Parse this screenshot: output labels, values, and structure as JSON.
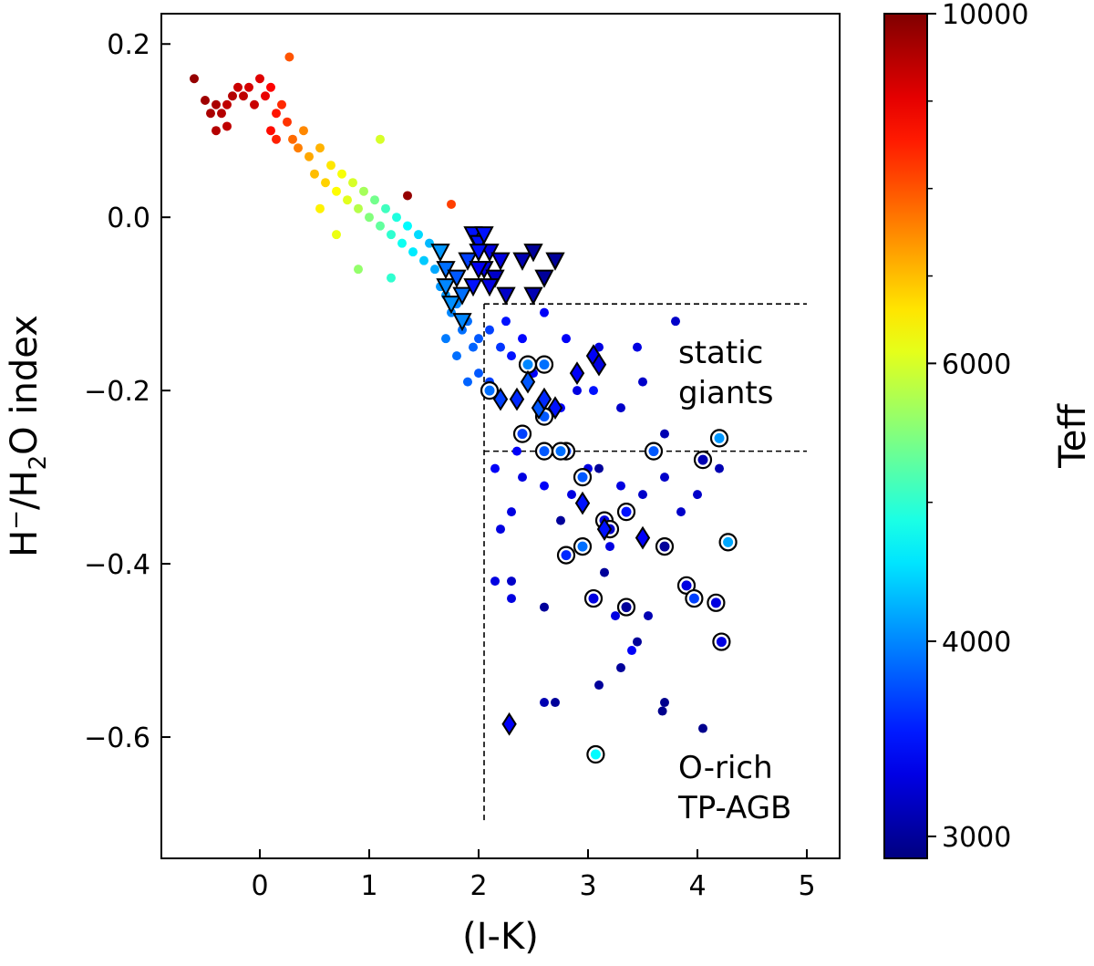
{
  "chart_data": {
    "type": "scatter",
    "title": "",
    "xlabel": "(I-K)",
    "ylabel_parts": {
      "p1": "H",
      "sup": "−",
      "p2": "/H",
      "sub": "2",
      "p3": "O index"
    },
    "xlim": [
      -0.9,
      5.3
    ],
    "ylim": [
      -0.74,
      0.235
    ],
    "x_ticks": [
      0,
      1,
      2,
      3,
      4,
      5
    ],
    "x_tick_labels": [
      "0",
      "1",
      "2",
      "3",
      "4",
      "5"
    ],
    "y_ticks": [
      0.2,
      0.0,
      -0.2,
      -0.4,
      -0.6
    ],
    "y_tick_labels": [
      "0.2",
      "0.0",
      "−0.2",
      "−0.4",
      "−0.6"
    ],
    "grid": false,
    "colorbar": {
      "label": "Teff",
      "cmap": "jet",
      "range": [
        2900,
        10000
      ],
      "ticks": [
        3000,
        4000,
        6000,
        10000
      ],
      "tick_labels": [
        "3000",
        "4000",
        "6000",
        "10000"
      ],
      "minor_ticks": [
        5000,
        7000,
        8000,
        9000
      ]
    },
    "annotations": [
      {
        "lines": [
          "static",
          "giants"
        ],
        "x": 3.8,
        "y": -0.17
      },
      {
        "lines": [
          "O-rich",
          "TP-AGB"
        ],
        "x": 3.8,
        "y": -0.645
      }
    ],
    "boundaries": [
      {
        "x1": 2.05,
        "y1": -0.1,
        "x2": 5.0,
        "y2": -0.1
      },
      {
        "x1": 2.05,
        "y1": -0.27,
        "x2": 5.0,
        "y2": -0.27
      },
      {
        "x1": 2.05,
        "y1": -0.1,
        "x2": 2.05,
        "y2": -0.7
      }
    ],
    "series": [
      {
        "name": "sample stars",
        "marker": "dot",
        "points": [
          [
            -0.6,
            0.16,
            9800
          ],
          [
            -0.5,
            0.135,
            9700
          ],
          [
            -0.45,
            0.12,
            9600
          ],
          [
            -0.4,
            0.13,
            9600
          ],
          [
            -0.35,
            0.12,
            9500
          ],
          [
            -0.3,
            0.13,
            9400
          ],
          [
            -0.25,
            0.14,
            9500
          ],
          [
            -0.2,
            0.15,
            9300
          ],
          [
            -0.15,
            0.14,
            9400
          ],
          [
            -0.1,
            0.15,
            9200
          ],
          [
            -0.05,
            0.13,
            9300
          ],
          [
            0.0,
            0.16,
            9100
          ],
          [
            0.05,
            0.14,
            9000
          ],
          [
            0.1,
            0.15,
            8800
          ],
          [
            0.15,
            0.12,
            8600
          ],
          [
            0.2,
            0.13,
            8400
          ],
          [
            0.25,
            0.11,
            8300
          ],
          [
            0.27,
            0.185,
            8000
          ],
          [
            -0.4,
            0.1,
            9500
          ],
          [
            -0.3,
            0.105,
            9400
          ],
          [
            0.1,
            0.1,
            8700
          ],
          [
            0.15,
            0.09,
            8500
          ],
          [
            0.3,
            0.09,
            7800
          ],
          [
            0.35,
            0.08,
            7600
          ],
          [
            0.4,
            0.1,
            7500
          ],
          [
            0.45,
            0.07,
            7200
          ],
          [
            0.5,
            0.05,
            7000
          ],
          [
            0.55,
            0.08,
            7100
          ],
          [
            0.6,
            0.04,
            6800
          ],
          [
            0.65,
            0.06,
            6600
          ],
          [
            0.7,
            0.03,
            6400
          ],
          [
            0.75,
            0.05,
            6300
          ],
          [
            0.8,
            0.02,
            6100
          ],
          [
            0.85,
            0.04,
            6000
          ],
          [
            0.9,
            0.01,
            5800
          ],
          [
            0.95,
            0.03,
            5700
          ],
          [
            1.0,
            0.0,
            5500
          ],
          [
            1.05,
            0.02,
            5400
          ],
          [
            1.1,
            -0.01,
            5300
          ],
          [
            1.15,
            0.01,
            5100
          ],
          [
            1.2,
            -0.02,
            5000
          ],
          [
            1.25,
            0.0,
            4900
          ],
          [
            1.3,
            -0.03,
            4800
          ],
          [
            1.35,
            -0.01,
            4700
          ],
          [
            1.4,
            -0.04,
            4600
          ],
          [
            1.45,
            -0.02,
            4500
          ],
          [
            1.5,
            -0.05,
            4400
          ],
          [
            1.55,
            -0.03,
            4300
          ],
          [
            1.6,
            -0.06,
            4200
          ],
          [
            1.65,
            -0.08,
            4100
          ],
          [
            1.1,
            0.09,
            6000
          ],
          [
            0.7,
            -0.02,
            6200
          ],
          [
            0.55,
            0.01,
            6500
          ],
          [
            1.35,
            0.025,
            9800
          ],
          [
            1.75,
            0.015,
            8200
          ],
          [
            0.9,
            -0.06,
            5600
          ],
          [
            1.2,
            -0.07,
            5000
          ],
          [
            1.7,
            -0.09,
            4100
          ],
          [
            1.75,
            -0.11,
            4000
          ],
          [
            1.8,
            -0.1,
            4000
          ],
          [
            1.85,
            -0.13,
            3900
          ],
          [
            1.9,
            -0.12,
            3900
          ],
          [
            1.95,
            -0.15,
            3850
          ],
          [
            2.0,
            -0.14,
            3800
          ],
          [
            1.7,
            -0.14,
            3950
          ],
          [
            1.8,
            -0.16,
            3900
          ],
          [
            2.0,
            -0.18,
            3800
          ],
          [
            2.1,
            -0.13,
            3700
          ],
          [
            2.2,
            -0.15,
            3650
          ],
          [
            2.25,
            -0.12,
            3500
          ],
          [
            2.3,
            -0.16,
            3500
          ],
          [
            2.4,
            -0.14,
            3450
          ],
          [
            2.5,
            -0.18,
            3400
          ],
          [
            2.6,
            -0.11,
            3400
          ],
          [
            1.9,
            -0.19,
            3850
          ],
          [
            2.1,
            -0.19,
            3700
          ],
          [
            2.8,
            -0.14,
            3400
          ],
          [
            2.9,
            -0.2,
            3300
          ],
          [
            3.1,
            -0.15,
            3300
          ],
          [
            3.3,
            -0.22,
            3200
          ],
          [
            3.5,
            -0.19,
            3200
          ],
          [
            3.7,
            -0.25,
            3100
          ],
          [
            3.8,
            -0.12,
            3200
          ],
          [
            3.45,
            -0.15,
            3300
          ],
          [
            2.35,
            -0.27,
            3400
          ],
          [
            2.15,
            -0.29,
            3400
          ],
          [
            2.4,
            -0.3,
            3300
          ],
          [
            2.3,
            -0.34,
            3300
          ],
          [
            2.2,
            -0.36,
            3300
          ],
          [
            2.6,
            -0.31,
            3400
          ],
          [
            2.85,
            -0.32,
            3300
          ],
          [
            3.0,
            -0.29,
            3300
          ],
          [
            3.3,
            -0.31,
            3300
          ],
          [
            3.5,
            -0.32,
            3200
          ],
          [
            3.7,
            -0.3,
            3200
          ],
          [
            3.85,
            -0.34,
            3200
          ],
          [
            4.0,
            -0.32,
            3200
          ],
          [
            4.2,
            -0.29,
            3100
          ],
          [
            3.1,
            -0.29,
            3000
          ],
          [
            2.75,
            -0.35,
            3000
          ],
          [
            3.15,
            -0.41,
            3000
          ],
          [
            3.2,
            -0.38,
            3300
          ],
          [
            2.15,
            -0.42,
            3300
          ],
          [
            2.3,
            -0.42,
            3200
          ],
          [
            2.3,
            -0.44,
            3300
          ],
          [
            2.6,
            -0.45,
            3000
          ],
          [
            3.25,
            -0.46,
            3300
          ],
          [
            3.4,
            -0.5,
            3400
          ],
          [
            3.3,
            -0.52,
            3000
          ],
          [
            3.45,
            -0.49,
            3000
          ],
          [
            3.55,
            -0.46,
            3100
          ],
          [
            3.1,
            -0.54,
            3000
          ],
          [
            2.6,
            -0.56,
            3100
          ],
          [
            2.7,
            -0.56,
            3000
          ],
          [
            3.7,
            -0.56,
            2950
          ],
          [
            3.68,
            -0.57,
            2950
          ],
          [
            4.05,
            -0.59,
            2950
          ],
          [
            3.05,
            -0.2,
            3500
          ],
          [
            2.75,
            -0.22,
            3400
          ]
        ]
      },
      {
        "name": "triangles",
        "marker": "triangle-down",
        "points": [
          [
            1.65,
            -0.04,
            4100
          ],
          [
            1.7,
            -0.06,
            3900
          ],
          [
            1.7,
            -0.08,
            4000
          ],
          [
            1.75,
            -0.1,
            4050
          ],
          [
            1.8,
            -0.07,
            3800
          ],
          [
            1.85,
            -0.09,
            3900
          ],
          [
            1.9,
            -0.05,
            3700
          ],
          [
            1.95,
            -0.02,
            3500
          ],
          [
            2.0,
            -0.03,
            3500
          ],
          [
            2.05,
            -0.06,
            3300
          ],
          [
            2.1,
            -0.04,
            3300
          ],
          [
            2.15,
            -0.07,
            3200
          ],
          [
            2.25,
            -0.09,
            3200
          ],
          [
            2.4,
            -0.05,
            3100
          ],
          [
            2.5,
            -0.04,
            3000
          ],
          [
            2.6,
            -0.07,
            3000
          ],
          [
            2.7,
            -0.05,
            3000
          ],
          [
            2.5,
            -0.09,
            3100
          ],
          [
            1.85,
            -0.12,
            4000
          ],
          [
            1.95,
            -0.08,
            3500
          ],
          [
            2.0,
            -0.06,
            3400
          ],
          [
            2.1,
            -0.08,
            3300
          ],
          [
            2.2,
            -0.05,
            3300
          ],
          [
            2.05,
            -0.02,
            3500
          ],
          [
            2.0,
            -0.04,
            3500
          ]
        ]
      },
      {
        "name": "circles",
        "marker": "ring",
        "points": [
          [
            2.45,
            -0.17,
            4000
          ],
          [
            2.6,
            -0.17,
            3900
          ],
          [
            2.1,
            -0.2,
            3900
          ],
          [
            2.6,
            -0.23,
            3800
          ],
          [
            2.4,
            -0.25,
            3700
          ],
          [
            2.6,
            -0.27,
            3800
          ],
          [
            2.8,
            -0.27,
            3700
          ],
          [
            2.75,
            -0.27,
            3900
          ],
          [
            3.6,
            -0.27,
            3800
          ],
          [
            4.05,
            -0.28,
            3100
          ],
          [
            4.2,
            -0.255,
            4100
          ],
          [
            2.95,
            -0.3,
            3800
          ],
          [
            3.35,
            -0.34,
            3500
          ],
          [
            3.15,
            -0.35,
            3300
          ],
          [
            3.2,
            -0.36,
            3200
          ],
          [
            2.8,
            -0.39,
            3600
          ],
          [
            2.95,
            -0.38,
            3900
          ],
          [
            3.7,
            -0.38,
            3000
          ],
          [
            4.28,
            -0.375,
            4200
          ],
          [
            3.05,
            -0.44,
            3300
          ],
          [
            3.35,
            -0.45,
            3000
          ],
          [
            3.9,
            -0.425,
            3300
          ],
          [
            3.97,
            -0.44,
            3700
          ],
          [
            4.17,
            -0.445,
            3300
          ],
          [
            4.22,
            -0.49,
            3300
          ],
          [
            3.07,
            -0.62,
            4700
          ]
        ]
      },
      {
        "name": "diamonds",
        "marker": "diamond",
        "points": [
          [
            3.05,
            -0.16,
            3400
          ],
          [
            3.1,
            -0.17,
            3300
          ],
          [
            2.9,
            -0.18,
            3400
          ],
          [
            2.2,
            -0.21,
            3700
          ],
          [
            2.35,
            -0.21,
            3600
          ],
          [
            2.45,
            -0.19,
            3800
          ],
          [
            2.55,
            -0.22,
            3800
          ],
          [
            2.6,
            -0.21,
            3600
          ],
          [
            2.7,
            -0.22,
            3500
          ],
          [
            2.95,
            -0.33,
            3500
          ],
          [
            3.15,
            -0.36,
            3500
          ],
          [
            3.5,
            -0.37,
            3400
          ],
          [
            2.28,
            -0.585,
            3400
          ]
        ]
      }
    ]
  }
}
